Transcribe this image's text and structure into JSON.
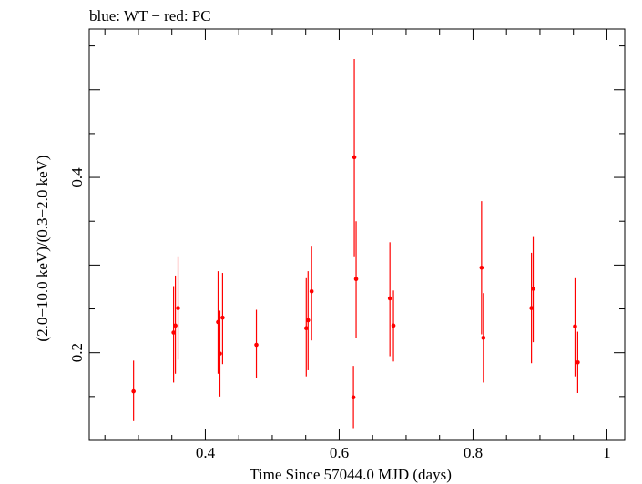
{
  "chart_data": {
    "type": "scatter",
    "title": "blue: WT − red: PC",
    "xlabel": "Time Since 57044.0 MJD (days)",
    "ylabel": "(2.0−10.0 keV)/(0.3−2.0 keV)",
    "xlim": [
      0.2266,
      1.0266
    ],
    "ylim": [
      0.1,
      0.5693
    ],
    "x_ticks": [
      {
        "value": 0.4,
        "label": "0.4"
      },
      {
        "value": 0.6,
        "label": "0.6"
      },
      {
        "value": 0.8,
        "label": "0.8"
      },
      {
        "value": 1.0,
        "label": "1"
      }
    ],
    "y_ticks": [
      {
        "value": 0.2,
        "label": "0.2"
      },
      {
        "value": 0.4,
        "label": "0.4"
      }
    ],
    "series": [
      {
        "color": "#ff0000",
        "points": [
          {
            "x": 0.2928,
            "y": 0.156,
            "lo": 0.122,
            "hi": 0.191
          },
          {
            "x": 0.3526,
            "y": 0.223,
            "lo": 0.166,
            "hi": 0.276
          },
          {
            "x": 0.3553,
            "y": 0.231,
            "lo": 0.176,
            "hi": 0.288
          },
          {
            "x": 0.3593,
            "y": 0.251,
            "lo": 0.192,
            "hi": 0.31
          },
          {
            "x": 0.4191,
            "y": 0.235,
            "lo": 0.176,
            "hi": 0.293
          },
          {
            "x": 0.4218,
            "y": 0.199,
            "lo": 0.15,
            "hi": 0.248
          },
          {
            "x": 0.4258,
            "y": 0.24,
            "lo": 0.187,
            "hi": 0.291
          },
          {
            "x": 0.4763,
            "y": 0.209,
            "lo": 0.171,
            "hi": 0.249
          },
          {
            "x": 0.5508,
            "y": 0.228,
            "lo": 0.173,
            "hi": 0.285
          },
          {
            "x": 0.5535,
            "y": 0.237,
            "lo": 0.18,
            "hi": 0.293
          },
          {
            "x": 0.5588,
            "y": 0.27,
            "lo": 0.214,
            "hi": 0.322
          },
          {
            "x": 0.6213,
            "y": 0.149,
            "lo": 0.114,
            "hi": 0.185
          },
          {
            "x": 0.6226,
            "y": 0.423,
            "lo": 0.31,
            "hi": 0.535
          },
          {
            "x": 0.6253,
            "y": 0.284,
            "lo": 0.217,
            "hi": 0.35
          },
          {
            "x": 0.6758,
            "y": 0.262,
            "lo": 0.196,
            "hi": 0.326
          },
          {
            "x": 0.6811,
            "y": 0.231,
            "lo": 0.19,
            "hi": 0.271
          },
          {
            "x": 0.8128,
            "y": 0.297,
            "lo": 0.221,
            "hi": 0.373
          },
          {
            "x": 0.8155,
            "y": 0.217,
            "lo": 0.166,
            "hi": 0.268
          },
          {
            "x": 0.8873,
            "y": 0.251,
            "lo": 0.188,
            "hi": 0.314
          },
          {
            "x": 0.8899,
            "y": 0.273,
            "lo": 0.212,
            "hi": 0.333
          },
          {
            "x": 0.9524,
            "y": 0.23,
            "lo": 0.173,
            "hi": 0.285
          },
          {
            "x": 0.9564,
            "y": 0.189,
            "lo": 0.154,
            "hi": 0.224
          }
        ]
      }
    ],
    "grid": false,
    "legend": "none"
  }
}
